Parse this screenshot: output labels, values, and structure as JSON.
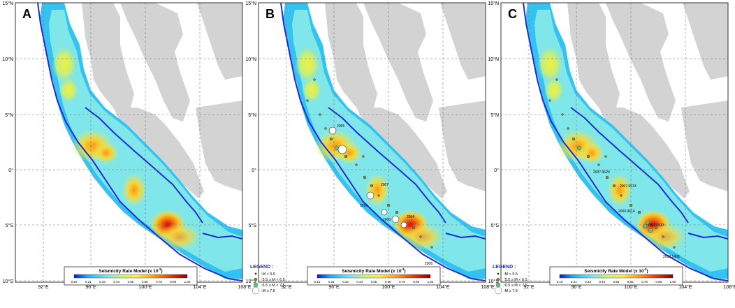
{
  "panels": [
    {
      "label": "A",
      "show_legend": false
    },
    {
      "label": "B",
      "show_legend": true
    },
    {
      "label": "C",
      "show_legend": true
    }
  ],
  "lat_labels": [
    "15°N",
    "10°N",
    "5°N",
    "0°",
    "5°S",
    "10°S"
  ],
  "lon_labels": [
    "92°E",
    "96°E",
    "100°E",
    "104°E",
    "108°E"
  ],
  "colorbar": {
    "title": "Seismicity Rate Model (x 10",
    "exponent": "-3",
    "title_close": ")",
    "ticks": [
      "0.10",
      "0.21",
      "0.33",
      "0.44",
      "0.55",
      "0.66",
      "0.78",
      "0.89",
      "1.00"
    ]
  },
  "legend": {
    "title": "LEGEND :",
    "items": [
      ":M < 5.5",
      ":5.5 ≥ M < 6.5",
      ":6.5 ≥ M < 7.5",
      ":M ≥ 7.5"
    ]
  },
  "colors": {
    "land": "#d3d3d3",
    "trench": "#1a2fd6",
    "legend_title": "#1a2fd6",
    "event_small": "#7a8a3a",
    "event_mid": "#5cc47a"
  },
  "event_labels_B": [
    "2005",
    "2007",
    "2010",
    "2000",
    "2004",
    "2006"
  ],
  "event_labels_C": [
    "2007.0620",
    "2007.0913",
    "2000.0614",
    "2007.0913",
    "2012.1403"
  ]
}
